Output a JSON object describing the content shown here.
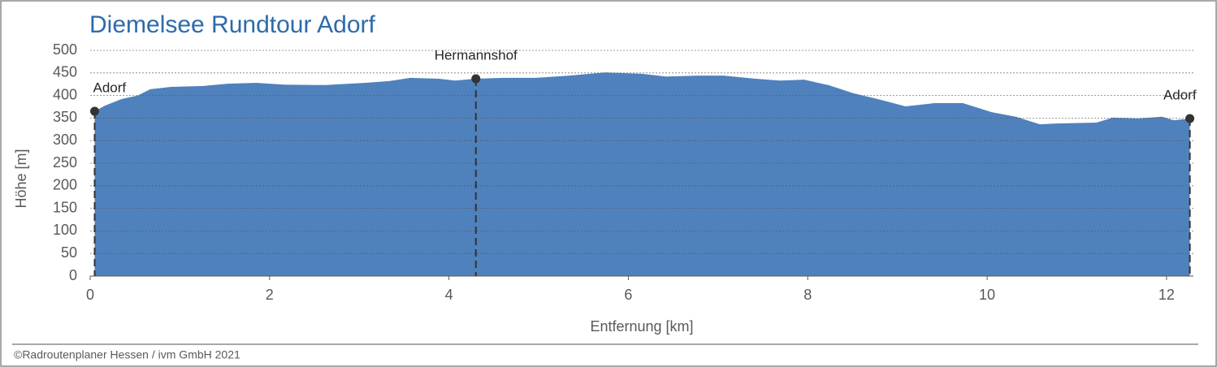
{
  "chart_data": {
    "type": "area",
    "title": "Diemelsee Rundtour Adorf",
    "xlabel": "Entfernung [km]",
    "ylabel": "Höhe [m]",
    "color": "#4f81bd",
    "x": [
      0.05,
      0.17,
      0.35,
      0.53,
      0.67,
      0.9,
      1.26,
      1.53,
      1.85,
      2.16,
      2.62,
      3.07,
      3.34,
      3.57,
      3.89,
      4.07,
      4.29,
      4.61,
      4.97,
      5.34,
      5.74,
      6.15,
      6.42,
      6.78,
      7.06,
      7.42,
      7.69,
      7.96,
      8.23,
      8.51,
      8.78,
      9.09,
      9.41,
      9.73,
      10.05,
      10.32,
      10.59,
      10.77,
      11.22,
      11.4,
      11.68,
      11.95,
      12.08,
      12.26
    ],
    "values": [
      365,
      378,
      392,
      400,
      414,
      419,
      421,
      426,
      428,
      424,
      423,
      428,
      432,
      439,
      437,
      433,
      437,
      439,
      439,
      444,
      451,
      448,
      442,
      444,
      444,
      437,
      433,
      435,
      423,
      405,
      392,
      376,
      383,
      383,
      363,
      353,
      336,
      338,
      340,
      351,
      349,
      353,
      345,
      349
    ],
    "waypoints": [
      {
        "name": "Adorf",
        "x": 0.05,
        "y": 365
      },
      {
        "name": "Hermannshof",
        "x": 4.3,
        "y": 437
      },
      {
        "name": "Adorf",
        "x": 12.26,
        "y": 349
      }
    ],
    "xlim": [
      0,
      12.3
    ],
    "xticks": [
      0,
      2,
      4,
      6,
      8,
      10,
      12
    ],
    "ylim": [
      0,
      500
    ],
    "yticks": [
      0,
      50,
      100,
      150,
      200,
      250,
      300,
      350,
      400,
      450,
      500
    ],
    "grid": true
  },
  "footer": "©Radroutenplaner Hessen / ivm GmbH 2021"
}
